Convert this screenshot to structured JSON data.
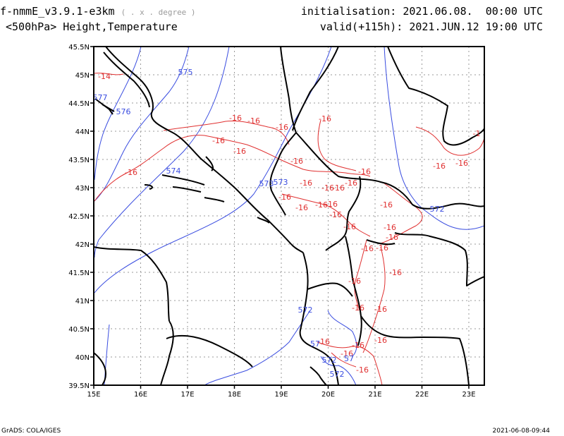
{
  "header": {
    "model": "f-nmmE_v3.9.1-e3km",
    "model_note": "( . x . degree )",
    "init_label": "initialisation:",
    "init_value": "2021.06.08.  00:00 UTC",
    "field": "<500hPa> Height,Temperature",
    "valid_label": "valid(+115h):",
    "valid_value": "2021.JUN.12 19:00 UTC"
  },
  "footer": {
    "left": "GrADS: COLA/IGES",
    "right": "2021-06-08-09:44"
  },
  "map": {
    "lat_ticks": [
      "45.5N",
      "45N",
      "44.5N",
      "44N",
      "43.5N",
      "43N",
      "42.5N",
      "42N",
      "41.5N",
      "41N",
      "40.5N",
      "40N",
      "39.5N"
    ],
    "lon_ticks": [
      "15E",
      "16E",
      "17E",
      "18E",
      "19E",
      "20E",
      "21E",
      "22E",
      "23E"
    ],
    "temp_labels": [
      "-14",
      "-16",
      "-16",
      "-16",
      "-16",
      "-16",
      "-16",
      "-16",
      "-16",
      "-16",
      "-16",
      "-16",
      "-16",
      "-16",
      "-16",
      "-16",
      "-16",
      "-16",
      "-16",
      "-16",
      "-16",
      "-16",
      "-16",
      "-16",
      "-16",
      "-16",
      "-16",
      "-16",
      "-16",
      "-16",
      "-16",
      "-16",
      "-16",
      "-16",
      "-16",
      "-16",
      "-1"
    ],
    "height_labels": [
      "575",
      "577",
      "576",
      "574",
      "573",
      "573",
      "572",
      "572",
      "57",
      "572",
      "57",
      "572"
    ],
    "colors": {
      "temperature": "#e03030",
      "height": "#3a4de0",
      "coast": "#000000",
      "grid": "#9a9a9a"
    }
  }
}
